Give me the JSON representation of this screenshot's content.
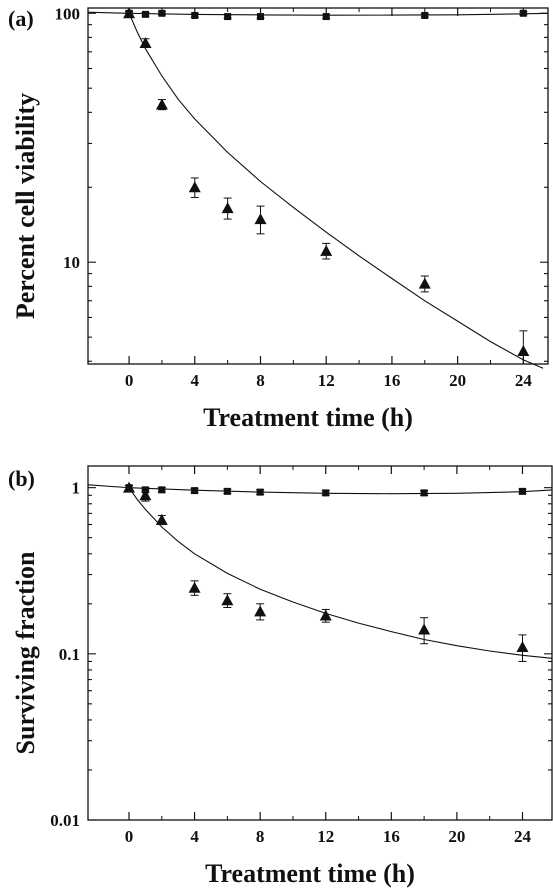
{
  "chart_data": [
    {
      "type": "scatter",
      "panel_label": "(a)",
      "title": "",
      "xlabel": "Treatment time (h)",
      "ylabel": "Percent cell viability",
      "xlim": [
        -2.5,
        25.5
      ],
      "ylim": [
        3.9,
        105
      ],
      "yscale": "log",
      "xticks": [
        0,
        4,
        8,
        12,
        16,
        20,
        24
      ],
      "yticks": [
        10,
        100
      ],
      "grid": false,
      "legend": "none",
      "series": [
        {
          "marker": "square",
          "x": [
            0,
            1,
            2,
            4,
            6,
            8,
            12,
            18,
            24
          ],
          "y": [
            100,
            99,
            100,
            98,
            97,
            97,
            97,
            98,
            100
          ],
          "err": [
            1.5,
            1.5,
            1.5,
            1.5,
            1.5,
            1.5,
            1.5,
            1.5,
            1.5
          ]
        },
        {
          "marker": "triangle",
          "x": [
            0,
            1,
            2,
            4,
            6,
            8,
            12,
            18,
            24
          ],
          "y": [
            100,
            76,
            43,
            20,
            16.5,
            14.9,
            11.1,
            8.2,
            4.4
          ],
          "err": [
            2,
            3,
            2,
            1.8,
            1.6,
            1.9,
            0.8,
            0.6,
            0.9
          ]
        }
      ],
      "fit_curves": [
        {
          "x": [
            -2.5,
            0,
            4,
            8,
            12,
            16,
            20,
            24,
            25.5
          ],
          "y": [
            101,
            100,
            99,
            98.5,
            98.2,
            98.3,
            98.6,
            99.5,
            100
          ]
        },
        {
          "x": [
            0,
            0.5,
            1,
            2,
            3,
            4,
            6,
            8,
            10,
            12,
            14,
            16,
            18,
            20,
            22,
            24,
            25.2
          ],
          "y": [
            100,
            84,
            72,
            56,
            45,
            37.6,
            27.6,
            21.1,
            16.6,
            13.2,
            10.6,
            8.6,
            7.0,
            5.8,
            4.8,
            4.05,
            3.75
          ]
        }
      ]
    },
    {
      "type": "scatter",
      "panel_label": "(b)",
      "title": "",
      "xlabel": "Treatment time (h)",
      "ylabel": "Surviving fraction",
      "xlim": [
        -2.5,
        25.8
      ],
      "ylim": [
        0.01,
        1.35
      ],
      "yscale": "log",
      "xticks": [
        0,
        4,
        8,
        12,
        16,
        20,
        24
      ],
      "yticks": [
        0.01,
        0.1,
        1
      ],
      "ytick_labels": [
        "0.01",
        "0.1",
        "1"
      ],
      "grid": false,
      "legend": "none",
      "series": [
        {
          "marker": "square",
          "x": [
            0,
            1,
            2,
            4,
            6,
            8,
            12,
            18,
            24
          ],
          "y": [
            1.0,
            0.97,
            0.97,
            0.96,
            0.95,
            0.94,
            0.93,
            0.93,
            0.95
          ],
          "err": [
            0.03,
            0.03,
            0.03,
            0.03,
            0.03,
            0.03,
            0.03,
            0.03,
            0.03
          ]
        },
        {
          "marker": "triangle",
          "x": [
            0,
            1,
            2,
            4,
            6,
            8,
            12,
            18,
            24
          ],
          "y": [
            1.0,
            0.9,
            0.64,
            0.25,
            0.21,
            0.18,
            0.17,
            0.14,
            0.11
          ],
          "err": [
            0.03,
            0.07,
            0.04,
            0.025,
            0.02,
            0.02,
            0.015,
            0.025,
            0.02
          ]
        }
      ],
      "fit_curves": [
        {
          "x": [
            -2.5,
            0,
            4,
            8,
            12,
            16,
            20,
            24,
            25.8
          ],
          "y": [
            1.04,
            1.0,
            0.965,
            0.94,
            0.925,
            0.92,
            0.925,
            0.945,
            0.97
          ]
        },
        {
          "x": [
            0,
            0.5,
            1,
            2,
            3,
            4,
            6,
            8,
            10,
            12,
            14,
            16,
            18,
            20,
            22,
            24,
            25.8
          ],
          "y": [
            1.0,
            0.85,
            0.74,
            0.58,
            0.475,
            0.4,
            0.305,
            0.245,
            0.205,
            0.175,
            0.153,
            0.136,
            0.122,
            0.112,
            0.104,
            0.098,
            0.094
          ]
        }
      ]
    }
  ]
}
